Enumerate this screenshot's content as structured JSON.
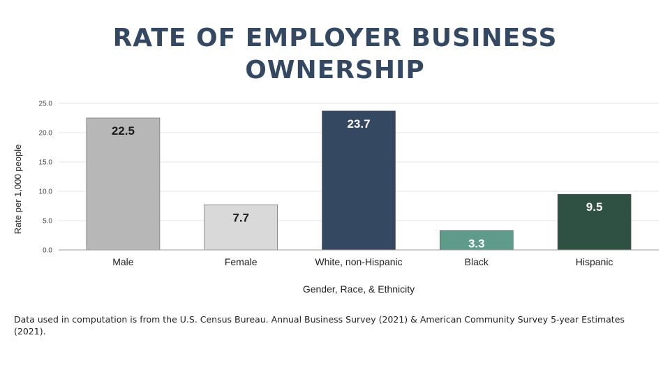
{
  "title_lines": [
    "RATE OF EMPLOYER BUSINESS",
    "OWNERSHIP"
  ],
  "footnote": "Data used in computation is from the U.S. Census Bureau. Annual Business Survey (2021) & American Community Survey 5-year Estimates (2021).",
  "chart_data": {
    "type": "bar",
    "categories": [
      "Male",
      "Female",
      "White, non-Hispanic",
      "Black",
      "Hispanic"
    ],
    "values": [
      22.5,
      7.7,
      23.7,
      3.3,
      9.5
    ],
    "data_labels": [
      "22.5",
      "7.7",
      "23.7",
      "3.3",
      "9.5"
    ],
    "bar_colors": [
      "#b7b7b7",
      "#d9d9d9",
      "#344861",
      "#5e9b8a",
      "#2e5143"
    ],
    "label_colors": [
      "#1a1a1a",
      "#1a1a1a",
      "#ffffff",
      "#ffffff",
      "#ffffff"
    ],
    "xlabel": "Gender, Race, & Ethnicity",
    "ylabel": "Rate per 1,000 people",
    "ylim": [
      0,
      25
    ],
    "yticks": [
      0,
      5,
      10,
      15,
      20,
      25
    ],
    "ytick_labels": [
      "0.0",
      "5.0",
      "10.0",
      "15.0",
      "20.0",
      "25.0"
    ],
    "grid": true,
    "legend": "none"
  }
}
